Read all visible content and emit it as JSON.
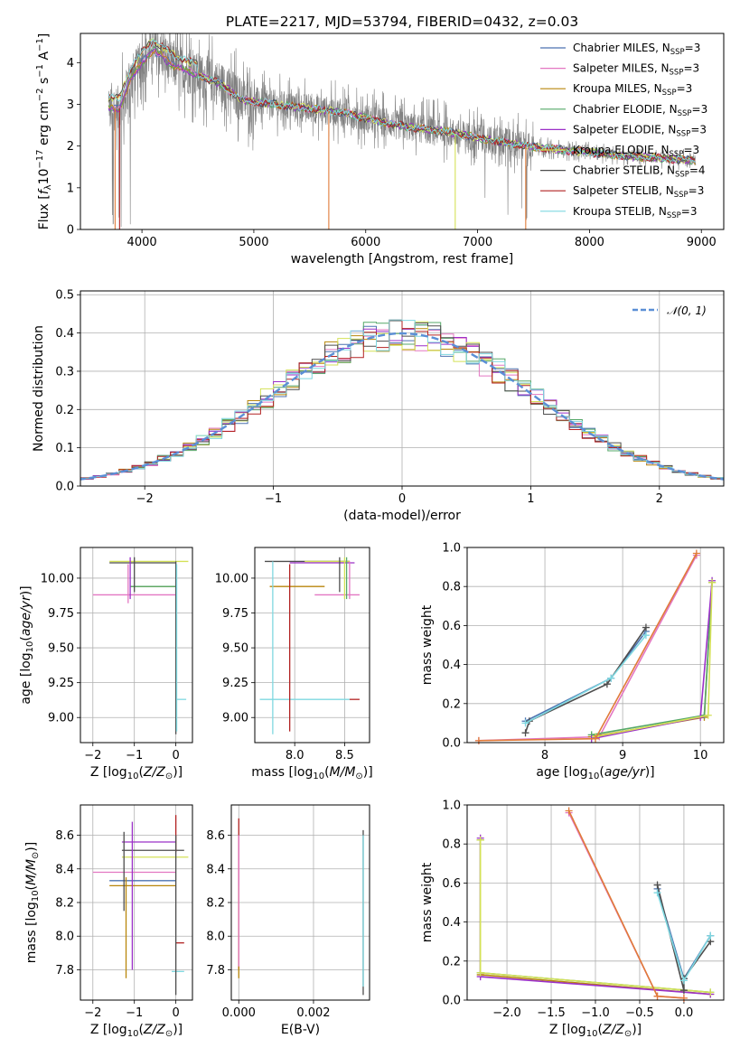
{
  "title": "PLATE=2217, MJD=53794, FIBERID=0432, z=0.03",
  "chart_data": [
    {
      "type": "line",
      "panel": "spectrum",
      "title": "PLATE=2217, MJD=53794, FIBERID=0432, z=0.03",
      "xlabel": "wavelength [Angstrom, rest frame]",
      "ylabel": "Flux [f_λ 10^-17 erg cm^-2 s^-1 A^-1]",
      "xlim": [
        3450,
        9200
      ],
      "ylim": [
        0,
        4.7
      ],
      "xticks": [
        4000,
        5000,
        6000,
        7000,
        8000,
        9000
      ],
      "yticks": [
        0,
        1,
        2,
        3,
        4
      ],
      "legend_position": "top-right",
      "data_color": "#808080",
      "anchor_x": [
        3700,
        3800,
        3900,
        4000,
        4100,
        4300,
        4500,
        4700,
        4900,
        5200,
        5500,
        5800,
        6100,
        6400,
        6700,
        7000,
        7300,
        7600,
        8000,
        8400,
        8700,
        8950
      ],
      "anchor_y": [
        2.9,
        2.9,
        3.6,
        4.0,
        4.3,
        3.9,
        3.7,
        3.5,
        3.1,
        3.0,
        2.9,
        2.8,
        2.6,
        2.45,
        2.35,
        2.2,
        2.05,
        1.95,
        1.85,
        1.75,
        1.7,
        1.65
      ],
      "series": [
        {
          "name": "Chabrier MILES, N_SSP=3",
          "label_main": "Chabrier MILES, N",
          "label_sub": "SSP",
          "label_tail": "=3",
          "color": "#4c72b0"
        },
        {
          "name": "Salpeter MILES, N_SSP=3",
          "label_main": "Salpeter MILES, N",
          "label_sub": "SSP",
          "label_tail": "=3",
          "color": "#e377c2"
        },
        {
          "name": "Kroupa MILES, N_SSP=3",
          "label_main": "Kroupa MILES, N",
          "label_sub": "SSP",
          "label_tail": "=3",
          "color": "#b8860b"
        },
        {
          "name": "Chabrier ELODIE, N_SSP=3",
          "label_main": "Chabrier ELODIE, N",
          "label_sub": "SSP",
          "label_tail": "=3",
          "color": "#55a868"
        },
        {
          "name": "Salpeter ELODIE, N_SSP=3",
          "label_main": "Salpeter ELODIE, N",
          "label_sub": "SSP",
          "label_tail": "=3",
          "color": "#9b30c8"
        },
        {
          "name": "Kroupa ELODIE, N_SSP=3",
          "label_main": "Kroupa ELODIE, N",
          "label_sub": "SSP",
          "label_tail": "=3",
          "color": "#d4e157"
        },
        {
          "name": "Chabrier STELIB, N_SSP=4",
          "label_main": "Chabrier STELIB, N",
          "label_sub": "SSP",
          "label_tail": "=4",
          "color": "#4d4d4d"
        },
        {
          "name": "Salpeter STELIB, N_SSP=3",
          "label_main": "Salpeter STELIB, N",
          "label_sub": "SSP",
          "label_tail": "=3",
          "color": "#b22222"
        },
        {
          "name": "Kroupa STELIB, N_SSP=3",
          "label_main": "Kroupa STELIB, N",
          "label_sub": "SSP",
          "label_tail": "=3",
          "color": "#7fd8e0"
        }
      ]
    },
    {
      "type": "line",
      "panel": "residual-histogram",
      "xlabel": "(data-model)/error",
      "ylabel": "Normed distribution",
      "xlim": [
        -2.5,
        2.5
      ],
      "ylim": [
        0,
        0.51
      ],
      "xticks": [
        -2,
        -1,
        0,
        1,
        2
      ],
      "yticks": [
        0.0,
        0.1,
        0.2,
        0.3,
        0.4,
        0.5
      ],
      "grid": true,
      "legend_position": "top-right",
      "reference_curve": {
        "name": "N(0,1)",
        "label": "𝒩(0, 1)",
        "color": "#5b8fd6",
        "style": "dashed"
      }
    },
    {
      "type": "scatter",
      "panel": "age-vs-metallicity",
      "xlabel": "Z [log10(Z/Z⊙)]",
      "ylabel": "age [log10(age/yr)]",
      "xlim": [
        -2.3,
        0.4
      ],
      "ylim": [
        8.82,
        10.22
      ],
      "xticks": [
        -2,
        -1,
        0
      ],
      "yticks": [
        9.0,
        9.25,
        9.5,
        9.75,
        10.0
      ],
      "grid": true
    },
    {
      "type": "scatter",
      "panel": "age-vs-mass",
      "xlabel": "mass [log10(M/M⊙)]",
      "ylabel": "",
      "xlim": [
        7.6,
        8.75
      ],
      "ylim": [
        8.82,
        10.22
      ],
      "xticks": [
        8.0,
        8.5
      ],
      "yticks": [
        9.0,
        9.25,
        9.5,
        9.75,
        10.0
      ],
      "grid": true
    },
    {
      "type": "line",
      "panel": "mass-weight-vs-age",
      "xlabel": "age [log10(age/yr)]",
      "ylabel": "mass weight",
      "xlim": [
        7.0,
        10.3
      ],
      "ylim": [
        0,
        1.0
      ],
      "xticks": [
        8,
        9,
        10
      ],
      "yticks": [
        0.0,
        0.2,
        0.4,
        0.6,
        0.8,
        1.0
      ],
      "grid": true,
      "series": [
        {
          "name": "Chabrier MILES",
          "color": "#4c72b0",
          "x": [
            7.75,
            8.85,
            9.3
          ],
          "y": [
            0.11,
            0.33,
            0.57
          ]
        },
        {
          "name": "Salpeter MILES",
          "color": "#e377c2",
          "x": [
            7.15,
            8.7,
            9.95
          ],
          "y": [
            0.01,
            0.03,
            0.96
          ]
        },
        {
          "name": "Kroupa MILES",
          "color": "#b8860b",
          "x": [
            8.6,
            10.05,
            10.15
          ],
          "y": [
            0.03,
            0.13,
            0.82
          ]
        },
        {
          "name": "Chabrier ELODIE",
          "color": "#55a868",
          "x": [
            8.6,
            10.05,
            10.15
          ],
          "y": [
            0.04,
            0.14,
            0.82
          ]
        },
        {
          "name": "Salpeter ELODIE",
          "color": "#9b30c8",
          "x": [
            8.6,
            10.0,
            10.15
          ],
          "y": [
            0.02,
            0.13,
            0.83
          ]
        },
        {
          "name": "Kroupa ELODIE",
          "color": "#d4e157",
          "x": [
            8.65,
            10.1,
            10.15
          ],
          "y": [
            0.03,
            0.14,
            0.82
          ]
        },
        {
          "name": "Chabrier STELIB",
          "color": "#4d4d4d",
          "x": [
            7.75,
            7.8,
            8.8,
            9.3
          ],
          "y": [
            0.05,
            0.11,
            0.3,
            0.59
          ]
        },
        {
          "name": "Salpeter STELIB",
          "color": "#e07b39",
          "x": [
            7.15,
            8.65,
            9.95
          ],
          "y": [
            0.01,
            0.02,
            0.97
          ]
        },
        {
          "name": "Kroupa STELIB",
          "color": "#7fd8e0",
          "x": [
            7.75,
            8.85,
            9.3
          ],
          "y": [
            0.1,
            0.33,
            0.55
          ]
        }
      ]
    },
    {
      "type": "scatter",
      "panel": "mass-vs-metallicity",
      "xlabel": "Z [log10(Z/Z⊙)]",
      "ylabel": "mass [log10(M/M⊙)]",
      "xlim": [
        -2.3,
        0.4
      ],
      "ylim": [
        7.62,
        8.78
      ],
      "xticks": [
        -2,
        -1,
        0
      ],
      "yticks": [
        7.8,
        8.0,
        8.2,
        8.4,
        8.6
      ],
      "grid": true
    },
    {
      "type": "scatter",
      "panel": "mass-vs-extinction",
      "xlabel": "E(B-V)",
      "ylabel": "",
      "xlim": [
        -0.0002,
        0.0035
      ],
      "ylim": [
        7.62,
        8.78
      ],
      "xticks": [
        0.0,
        0.002
      ],
      "yticks": [
        7.8,
        8.0,
        8.2,
        8.4,
        8.6
      ],
      "grid": true
    },
    {
      "type": "line",
      "panel": "mass-weight-vs-metallicity",
      "xlabel": "Z [log10(Z/Z⊙)]",
      "ylabel": "mass weight",
      "xlim": [
        -2.45,
        0.45
      ],
      "ylim": [
        0,
        1.0
      ],
      "xticks": [
        -2.0,
        -1.5,
        -1.0,
        -0.5,
        0.0
      ],
      "yticks": [
        0.0,
        0.2,
        0.4,
        0.6,
        0.8,
        1.0
      ],
      "grid": true,
      "series": [
        {
          "name": "Chabrier MILES",
          "color": "#4c72b0",
          "x": [
            -0.3,
            0.0,
            0.3
          ],
          "y": [
            0.57,
            0.11,
            0.33
          ]
        },
        {
          "name": "Salpeter MILES",
          "color": "#e377c2",
          "x": [
            -1.3,
            -0.3,
            0.0
          ],
          "y": [
            0.96,
            0.02,
            0.01
          ]
        },
        {
          "name": "Kroupa MILES",
          "color": "#b8860b",
          "x": [
            -2.3,
            -2.3,
            0.3
          ],
          "y": [
            0.82,
            0.13,
            0.03
          ]
        },
        {
          "name": "Chabrier ELODIE",
          "color": "#55a868",
          "x": [
            -2.3,
            -2.3,
            0.3
          ],
          "y": [
            0.82,
            0.14,
            0.04
          ]
        },
        {
          "name": "Salpeter ELODIE",
          "color": "#9b30c8",
          "x": [
            -2.3,
            -2.3,
            0.3
          ],
          "y": [
            0.83,
            0.12,
            0.03
          ]
        },
        {
          "name": "Kroupa ELODIE",
          "color": "#d4e157",
          "x": [
            -2.3,
            -2.3,
            0.3
          ],
          "y": [
            0.82,
            0.14,
            0.04
          ]
        },
        {
          "name": "Chabrier STELIB",
          "color": "#4d4d4d",
          "x": [
            -0.3,
            0.0,
            0.0,
            0.3
          ],
          "y": [
            0.59,
            0.05,
            0.11,
            0.3
          ]
        },
        {
          "name": "Salpeter STELIB",
          "color": "#e07b39",
          "x": [
            -1.3,
            -0.3,
            0.0
          ],
          "y": [
            0.97,
            0.02,
            0.01
          ]
        },
        {
          "name": "Kroupa STELIB",
          "color": "#7fd8e0",
          "x": [
            -0.3,
            0.0,
            0.3
          ],
          "y": [
            0.55,
            0.1,
            0.33
          ]
        }
      ]
    }
  ]
}
